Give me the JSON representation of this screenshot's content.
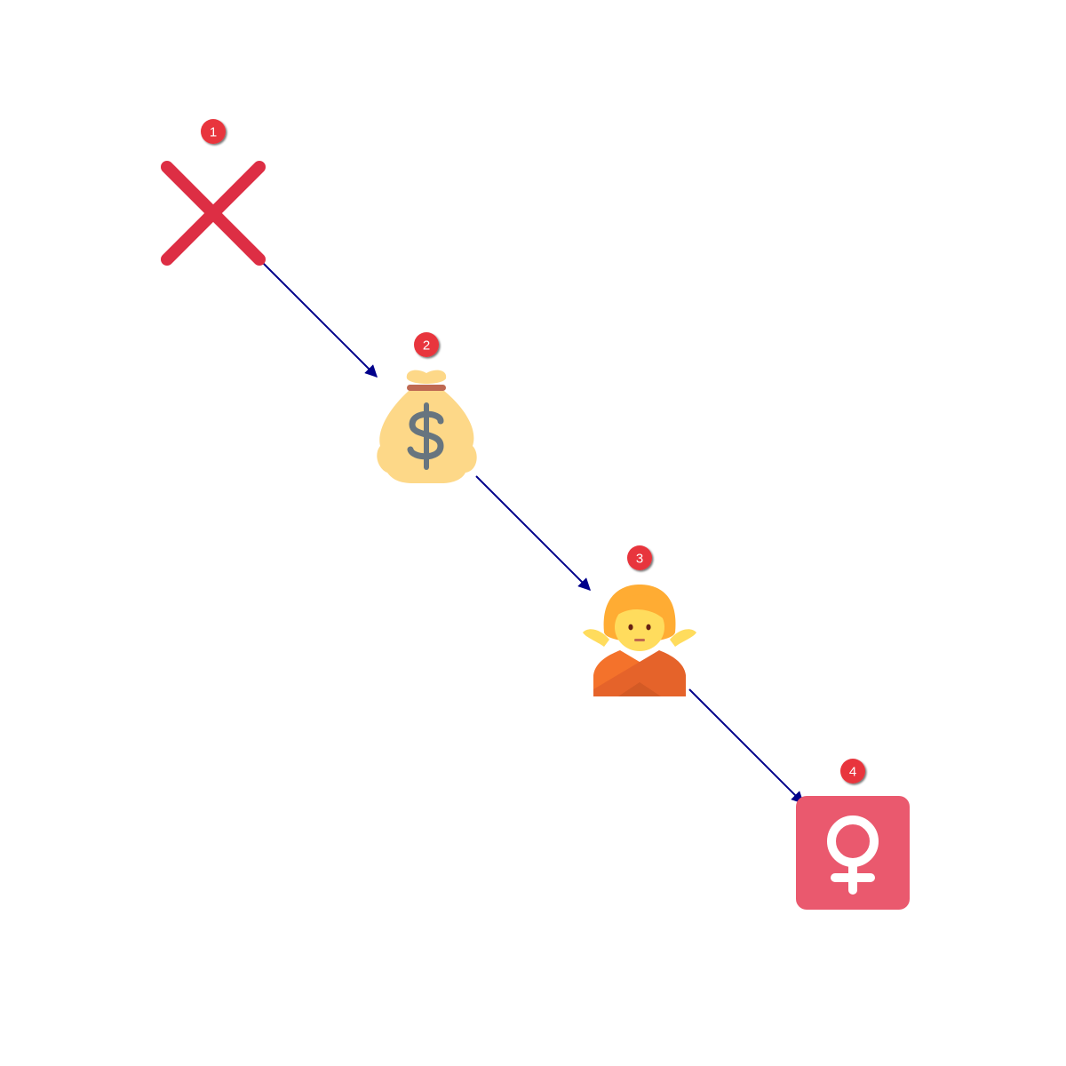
{
  "diagram": {
    "type": "emoji-sequence",
    "colors": {
      "arrow": "#00008b",
      "badge": "#e8363c",
      "x_mark": "#dd2e44",
      "money_bag": "#fdd888",
      "dollar_sign": "#67757f",
      "bag_tie": "#bf6952",
      "person_hair": "#ffac33",
      "person_face": "#ffdc5d",
      "person_arms": "#f4722b",
      "female_tile": "#ea596e"
    },
    "steps": [
      {
        "number": "1",
        "icon": "cross-mark-icon"
      },
      {
        "number": "2",
        "icon": "money-bag-icon"
      },
      {
        "number": "3",
        "icon": "person-gesturing-no-icon"
      },
      {
        "number": "4",
        "icon": "female-sign-icon"
      }
    ]
  }
}
